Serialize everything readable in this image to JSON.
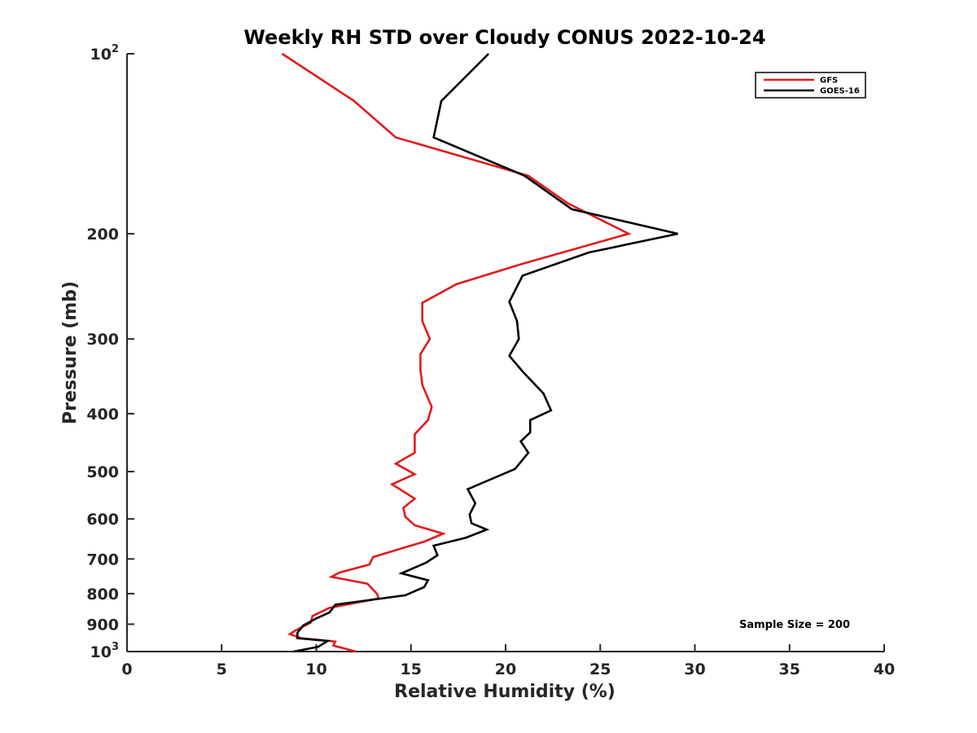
{
  "chart_data": {
    "type": "line",
    "title": "Weekly RH STD over Cloudy CONUS 2022-10-24",
    "xlabel": "Relative Humidity (%)",
    "ylabel": "Pressure (mb)",
    "xlim": [
      0,
      40
    ],
    "ylim": [
      100,
      1000
    ],
    "y_scale": "log",
    "y_reversed": true,
    "grid": false,
    "legend_position": "top-right",
    "xticks": [
      0,
      5,
      10,
      15,
      20,
      25,
      30,
      35,
      40
    ],
    "yticks": [
      {
        "value": 100,
        "base": "10",
        "exp": "2"
      },
      {
        "value": 200,
        "label": "200"
      },
      {
        "value": 300,
        "label": "300"
      },
      {
        "value": 400,
        "label": "400"
      },
      {
        "value": 500,
        "label": "500"
      },
      {
        "value": 600,
        "label": "600"
      },
      {
        "value": 700,
        "label": "700"
      },
      {
        "value": 800,
        "label": "800"
      },
      {
        "value": 900,
        "label": "900"
      },
      {
        "value": 1000,
        "base": "10",
        "exp": "3"
      }
    ],
    "annotation": "Sample Size = 200",
    "series": [
      {
        "name": "GFS",
        "color": "#e31a1c",
        "points": [
          [
            8.2,
            100
          ],
          [
            12.0,
            120
          ],
          [
            14.2,
            138
          ],
          [
            21.2,
            160
          ],
          [
            23.3,
            178
          ],
          [
            26.5,
            200
          ],
          [
            20.8,
            225
          ],
          [
            17.4,
            243
          ],
          [
            15.6,
            261
          ],
          [
            15.6,
            280
          ],
          [
            16.0,
            300
          ],
          [
            15.5,
            318
          ],
          [
            15.5,
            338
          ],
          [
            15.6,
            358
          ],
          [
            16.1,
            390
          ],
          [
            15.9,
            410
          ],
          [
            15.2,
            433
          ],
          [
            15.2,
            465
          ],
          [
            14.2,
            485
          ],
          [
            15.2,
            505
          ],
          [
            14.0,
            525
          ],
          [
            15.2,
            555
          ],
          [
            14.6,
            575
          ],
          [
            14.7,
            595
          ],
          [
            15.2,
            615
          ],
          [
            16.7,
            635
          ],
          [
            15.7,
            655
          ],
          [
            14.3,
            675
          ],
          [
            13.0,
            695
          ],
          [
            12.8,
            715
          ],
          [
            11.2,
            738
          ],
          [
            10.8,
            750
          ],
          [
            12.7,
            770
          ],
          [
            13.2,
            800
          ],
          [
            13.3,
            815
          ],
          [
            10.7,
            845
          ],
          [
            9.8,
            872
          ],
          [
            9.7,
            895
          ],
          [
            8.9,
            922
          ],
          [
            8.6,
            935
          ],
          [
            9.2,
            950
          ],
          [
            11.0,
            962
          ],
          [
            10.9,
            977
          ],
          [
            12.1,
            1000
          ]
        ]
      },
      {
        "name": "GOES-16",
        "color": "#000000",
        "points": [
          [
            19.1,
            100
          ],
          [
            16.6,
            120
          ],
          [
            16.2,
            138
          ],
          [
            21.0,
            160
          ],
          [
            23.5,
            182
          ],
          [
            29.1,
            200
          ],
          [
            24.4,
            215
          ],
          [
            20.9,
            235
          ],
          [
            20.2,
            260
          ],
          [
            20.6,
            280
          ],
          [
            20.7,
            300
          ],
          [
            20.2,
            320
          ],
          [
            20.9,
            340
          ],
          [
            22.0,
            370
          ],
          [
            22.4,
            395
          ],
          [
            21.3,
            410
          ],
          [
            21.3,
            430
          ],
          [
            20.8,
            445
          ],
          [
            21.2,
            465
          ],
          [
            20.5,
            495
          ],
          [
            18.0,
            535
          ],
          [
            18.4,
            565
          ],
          [
            18.1,
            590
          ],
          [
            18.2,
            610
          ],
          [
            19.0,
            625
          ],
          [
            17.9,
            645
          ],
          [
            16.2,
            665
          ],
          [
            16.4,
            690
          ],
          [
            15.8,
            710
          ],
          [
            14.5,
            740
          ],
          [
            15.9,
            760
          ],
          [
            15.7,
            780
          ],
          [
            14.7,
            805
          ],
          [
            11.0,
            835
          ],
          [
            10.7,
            860
          ],
          [
            10.0,
            880
          ],
          [
            9.3,
            905
          ],
          [
            9.0,
            930
          ],
          [
            9.0,
            950
          ],
          [
            10.6,
            960
          ],
          [
            10.1,
            982
          ],
          [
            8.8,
            1000
          ]
        ]
      }
    ]
  }
}
